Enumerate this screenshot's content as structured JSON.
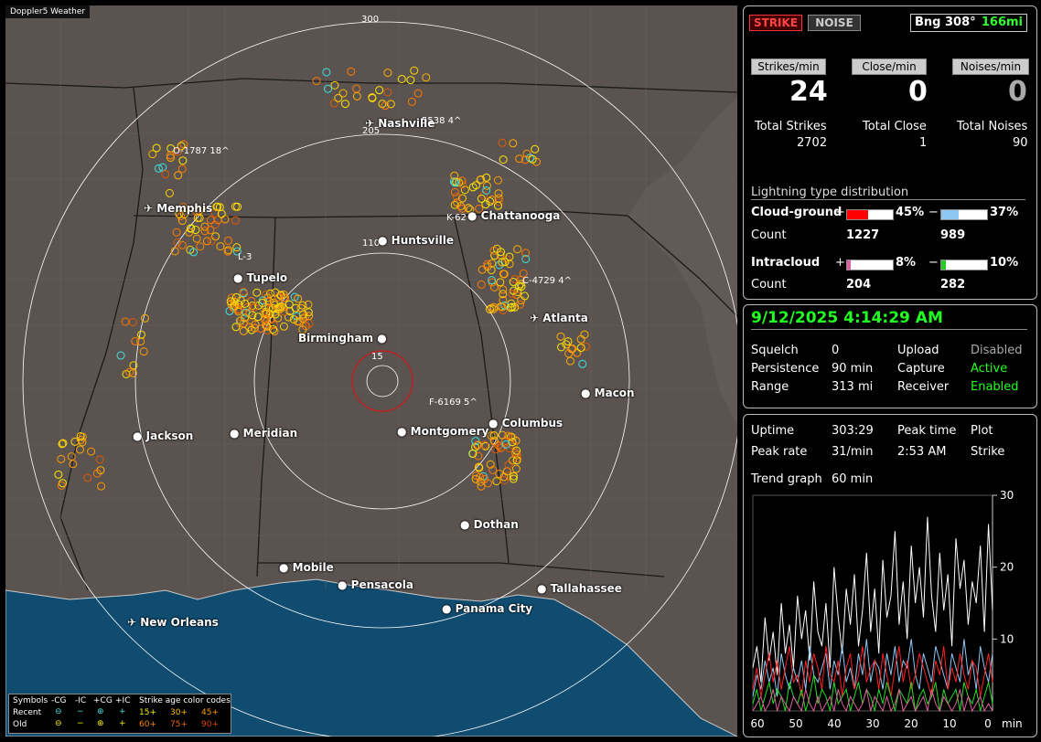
{
  "app_title": "Doppler5 Weather",
  "rings": [
    "15",
    "110",
    "205",
    "300"
  ],
  "cities": [
    {
      "name": "Nashville",
      "air": true
    },
    {
      "name": "Memphis",
      "air": true
    },
    {
      "name": "Chattanooga"
    },
    {
      "name": "Huntsville"
    },
    {
      "name": "Tupelo"
    },
    {
      "name": "Birmingham"
    },
    {
      "name": "Atlanta",
      "air": true
    },
    {
      "name": "Macon"
    },
    {
      "name": "Jackson"
    },
    {
      "name": "Meridian"
    },
    {
      "name": "Montgomery"
    },
    {
      "name": "Columbus"
    },
    {
      "name": "Dothan"
    },
    {
      "name": "Mobile"
    },
    {
      "name": "Pensacola"
    },
    {
      "name": "Tallahassee"
    },
    {
      "name": "Panama City"
    },
    {
      "name": "New Orleans",
      "air": true
    }
  ],
  "cells": [
    "O-1787  18^",
    "5538  4^",
    "K-62",
    "L-3",
    "C-4729  4^",
    "F-6169  5^"
  ],
  "legend": {
    "symbols": "Symbols",
    "cgm": "-CG",
    "icm": "-IC",
    "cgp": "+CG",
    "icp": "+IC",
    "codes": "Strike age color codes",
    "recent": "Recent",
    "old": "Old",
    "r1": "15+",
    "r2": "30+",
    "r3": "45+",
    "o1": "60+",
    "o2": "75+",
    "o3": "90+"
  },
  "top": {
    "strike": "STRIKE",
    "noise": "NOISE",
    "bearing": "Bng 308°",
    "distance": "166mi"
  },
  "rates": {
    "strikes_label": "Strikes/min",
    "close_label": "Close/min",
    "noises_label": "Noises/min",
    "strikes": "24",
    "close": "0",
    "noises": "0",
    "total_strikes_label": "Total Strikes",
    "total_close_label": "Total Close",
    "total_noises_label": "Total Noises",
    "total_strikes": "2702",
    "total_close": "1",
    "total_noises": "90"
  },
  "dist": {
    "title": "Lightning type distribution",
    "cg_label": "Cloud-ground",
    "ic_label": "Intracloud",
    "count_label": "Count",
    "plus": "+",
    "minus": "−",
    "cg_plus_pct": "45%",
    "cg_minus_pct": "37%",
    "ic_plus_pct": "8%",
    "ic_minus_pct": "10%",
    "cg_plus_count": "1227",
    "cg_minus_count": "989",
    "ic_plus_count": "204",
    "ic_minus_count": "282",
    "cg_plus_level": 0.45,
    "cg_minus_level": 0.37,
    "ic_plus_level": 0.08,
    "ic_minus_level": 0.1,
    "colors": {
      "cg_plus": "#ff0000",
      "cg_minus": "#8ec8f2",
      "ic_plus": "#e060a0",
      "ic_minus": "#22cc22"
    }
  },
  "status": {
    "datetime": "9/12/2025 4:14:29 AM",
    "squelch_label": "Squelch",
    "squelch": "0",
    "upload_label": "Upload",
    "upload": "Disabled",
    "persistence_label": "Persistence",
    "persistence": "90 min",
    "capture_label": "Capture",
    "capture": "Active",
    "range_label": "Range",
    "range": "313 mi",
    "receiver_label": "Receiver",
    "receiver": "Enabled"
  },
  "stats": {
    "uptime_label": "Uptime",
    "uptime": "303:29",
    "peak_time_label": "Peak time",
    "plot_label": "Plot",
    "peak_rate_label": "Peak rate",
    "peak_rate": "31/min",
    "peak_time": "2:53 AM",
    "plot": "Strike",
    "trend_label": "Trend graph",
    "trend": "60 min"
  },
  "chart_data": {
    "type": "line",
    "xlabel": "min",
    "x_ticks": [
      "60",
      "50",
      "40",
      "30",
      "20",
      "10",
      "0"
    ],
    "y_ticks": [
      "30",
      "20",
      "10"
    ],
    "ylim": [
      0,
      30
    ],
    "series": [
      {
        "color": "#ffffff",
        "values": [
          6,
          9,
          4,
          13,
          7,
          11,
          5,
          15,
          8,
          12,
          6,
          16,
          10,
          14,
          7,
          18,
          11,
          9,
          15,
          6,
          20,
          13,
          8,
          17,
          12,
          19,
          9,
          14,
          22,
          11,
          17,
          8,
          21,
          13,
          16,
          25,
          12,
          18,
          10,
          23,
          15,
          20,
          13,
          27,
          16,
          11,
          22,
          14,
          19,
          9,
          24,
          17,
          21,
          12,
          18,
          15,
          23,
          11,
          26,
          14
        ]
      },
      {
        "color": "#8ec8f2",
        "values": [
          2,
          5,
          3,
          7,
          4,
          6,
          2,
          8,
          5,
          3,
          6,
          4,
          7,
          3,
          9,
          5,
          4,
          6,
          8,
          3,
          7,
          5,
          9,
          4,
          6,
          3,
          8,
          5,
          10,
          4,
          7,
          6,
          3,
          8,
          5,
          9,
          4,
          7,
          6,
          10,
          5,
          3,
          8,
          6,
          4,
          9,
          7,
          5,
          3,
          8,
          6,
          4,
          10,
          5,
          7,
          3,
          9,
          6,
          4,
          8
        ]
      },
      {
        "color": "#ff2020",
        "values": [
          3,
          6,
          2,
          5,
          8,
          4,
          7,
          3,
          6,
          9,
          4,
          5,
          2,
          7,
          4,
          8,
          6,
          3,
          9,
          5,
          4,
          7,
          2,
          6,
          8,
          3,
          5,
          9,
          4,
          6,
          7,
          3,
          8,
          5,
          2,
          6,
          9,
          4,
          7,
          3,
          5,
          8,
          6,
          4,
          2,
          7,
          5,
          9,
          3,
          6,
          4,
          8,
          5,
          3,
          7,
          6,
          2,
          5,
          8,
          4
        ]
      },
      {
        "color": "#22dd22",
        "values": [
          1,
          3,
          0,
          2,
          4,
          1,
          3,
          2,
          0,
          4,
          2,
          1,
          3,
          0,
          2,
          5,
          1,
          3,
          2,
          0,
          4,
          1,
          2,
          3,
          0,
          2,
          4,
          1,
          3,
          2,
          0,
          3,
          1,
          4,
          2,
          0,
          3,
          2,
          1,
          4,
          0,
          2,
          3,
          1,
          2,
          4,
          0,
          3,
          1,
          2,
          3,
          0,
          4,
          2,
          1,
          3,
          0,
          2,
          4,
          1
        ]
      },
      {
        "color": "#e060a0",
        "values": [
          0,
          1,
          2,
          0,
          1,
          3,
          0,
          2,
          1,
          0,
          2,
          1,
          0,
          3,
          1,
          0,
          2,
          0,
          1,
          2,
          0,
          3,
          1,
          0,
          2,
          1,
          0,
          1,
          3,
          0,
          2,
          1,
          0,
          2,
          0,
          1,
          3,
          0,
          1,
          2,
          0,
          1,
          2,
          0,
          3,
          1,
          0,
          2,
          1,
          0,
          1,
          3,
          0,
          2,
          0,
          1,
          2,
          0,
          1,
          0
        ]
      }
    ]
  }
}
